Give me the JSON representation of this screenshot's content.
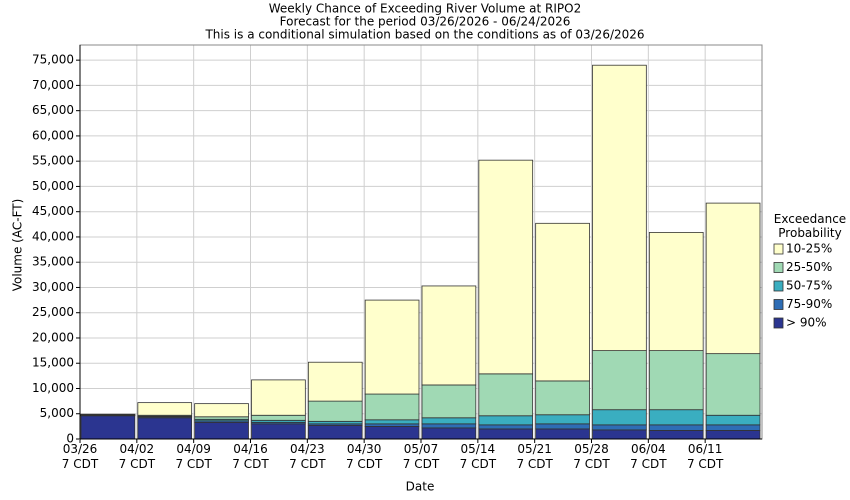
{
  "chart_data": {
    "type": "stacked-bar",
    "title": "Weekly Chance of Exceeding River Volume at RIPO2",
    "subtitle": "Forecast for the period 03/26/2026 - 06/24/2026",
    "note": "This is a conditional simulation based on the conditions as of 03/26/2026",
    "x_label": "Date",
    "y_label": "Volume (AC-FT)",
    "legend_title": "Exceedance Probability",
    "categories": [
      "03/26\n7 CDT",
      "04/02\n7 CDT",
      "04/09\n7 CDT",
      "04/16\n7 CDT",
      "04/23\n7 CDT",
      "04/30\n7 CDT",
      "05/07\n7 CDT",
      "05/14\n7 CDT",
      "05/21\n7 CDT",
      "05/28\n7 CDT",
      "06/04\n7 CDT",
      "06/11\n7 CDT"
    ],
    "series": [
      {
        "name": "> 90%",
        "color": "#2b3590",
        "values": [
          4600,
          4200,
          3300,
          3000,
          2700,
          2500,
          2200,
          2000,
          2000,
          1800,
          1700,
          1700
        ]
      },
      {
        "name": "75-90%",
        "color": "#2e6db5",
        "values": [
          100,
          200,
          300,
          300,
          300,
          500,
          800,
          800,
          1000,
          1000,
          1100,
          1100
        ]
      },
      {
        "name": "50-75%",
        "color": "#3aaec0",
        "values": [
          50,
          100,
          300,
          400,
          500,
          800,
          1200,
          1800,
          1800,
          3000,
          3000,
          1900
        ]
      },
      {
        "name": "25-50%",
        "color": "#a0d9b4",
        "values": [
          50,
          200,
          500,
          1000,
          4000,
          5100,
          6500,
          8300,
          6700,
          11700,
          11700,
          12200
        ]
      },
      {
        "name": "10-25%",
        "color": "#ffffcc",
        "values": [
          100,
          2500,
          2600,
          7000,
          7700,
          18600,
          19600,
          42300,
          31200,
          56500,
          23400,
          29800
        ]
      }
    ],
    "ylim": [
      0,
      78000
    ],
    "yticks": [
      0,
      {
        "value": 5000,
        "label": "5,000"
      },
      {
        "value": 10000,
        "label": "10,000"
      },
      {
        "value": 15000,
        "label": "15,000"
      },
      {
        "value": 20000,
        "label": "20,000"
      },
      {
        "value": 25000,
        "label": "25,000"
      },
      {
        "value": 30000,
        "label": "30,000"
      },
      {
        "value": 35000,
        "label": "35,000"
      },
      {
        "value": 40000,
        "label": "40,000"
      },
      {
        "value": 45000,
        "label": "45,000"
      },
      {
        "value": 50000,
        "label": "50,000"
      },
      {
        "value": 55000,
        "label": "55,000"
      },
      {
        "value": 60000,
        "label": "60,000"
      },
      {
        "value": 65000,
        "label": "65,000"
      },
      {
        "value": 70000,
        "label": "70,000"
      },
      {
        "value": 75000,
        "label": "75,000"
      }
    ],
    "grid": true
  }
}
